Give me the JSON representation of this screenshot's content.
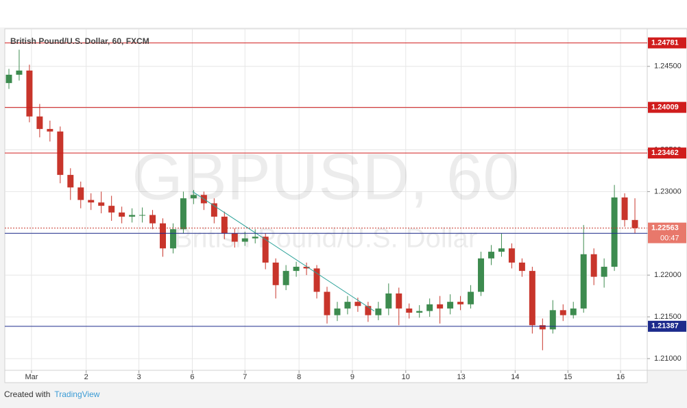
{
  "chart_data": {
    "type": "candlestick",
    "title": "British Pound/U.S. Dollar, 60, FXCM",
    "watermark": {
      "symbol": "GBPUSD, 60",
      "name": "British Pound/U.S. Dollar"
    },
    "up_color": "#3d8b4f",
    "down_color": "#c8352b",
    "open": [
      1.243,
      1.244,
      1.2445,
      1.239,
      1.2375,
      1.2372,
      1.232,
      1.2305,
      1.229,
      1.2287,
      1.2283,
      1.2275,
      1.227,
      1.2272,
      1.2272,
      1.2262,
      1.2232,
      1.2255,
      1.2292,
      1.2296,
      1.2286,
      1.227,
      1.225,
      1.224,
      1.2244,
      1.2246,
      1.2215,
      1.2188,
      1.2205,
      1.221,
      1.2208,
      1.218,
      1.2152,
      1.216,
      1.2168,
      1.2163,
      1.2152,
      1.216,
      1.2178,
      1.216,
      1.2155,
      1.2157,
      1.2165,
      1.216,
      1.2168,
      1.2165,
      1.218,
      1.222,
      1.2228,
      1.2232,
      1.2215,
      1.2205,
      1.214,
      1.2135,
      1.2158,
      1.2152,
      1.216,
      1.2225,
      1.2198,
      1.221,
      1.2293,
      1.2266
    ],
    "high": [
      1.2447,
      1.247,
      1.2452,
      1.2405,
      1.2385,
      1.2378,
      1.2328,
      1.2312,
      1.2298,
      1.23,
      1.2295,
      1.2282,
      1.228,
      1.2281,
      1.2278,
      1.2268,
      1.2262,
      1.23,
      1.2302,
      1.23,
      1.2292,
      1.2276,
      1.2256,
      1.2252,
      1.2255,
      1.225,
      1.222,
      1.2212,
      1.2216,
      1.2215,
      1.2212,
      1.2186,
      1.2168,
      1.2175,
      1.2173,
      1.2168,
      1.2168,
      1.219,
      1.2185,
      1.2166,
      1.2164,
      1.2172,
      1.2175,
      1.2177,
      1.2175,
      1.2188,
      1.2228,
      1.2236,
      1.225,
      1.2238,
      1.222,
      1.221,
      1.2148,
      1.217,
      1.2165,
      1.2168,
      1.226,
      1.2232,
      1.222,
      1.2308,
      1.2298,
      1.2292
    ],
    "low": [
      1.2423,
      1.2433,
      1.2383,
      1.2365,
      1.236,
      1.231,
      1.229,
      1.228,
      1.2278,
      1.2274,
      1.2265,
      1.2262,
      1.2263,
      1.2263,
      1.2255,
      1.2222,
      1.2226,
      1.225,
      1.2285,
      1.2278,
      1.2262,
      1.2243,
      1.2233,
      1.2235,
      1.2238,
      1.2207,
      1.2172,
      1.2182,
      1.2198,
      1.22,
      1.2172,
      1.2142,
      1.2145,
      1.2153,
      1.2156,
      1.2144,
      1.2146,
      1.2152,
      1.214,
      1.2148,
      1.2149,
      1.215,
      1.2142,
      1.2153,
      1.2158,
      1.216,
      1.2175,
      1.2212,
      1.2222,
      1.2208,
      1.2198,
      1.213,
      1.211,
      1.213,
      1.2145,
      1.2148,
      1.2155,
      1.2188,
      1.2185,
      1.2205,
      1.2258,
      1.225
    ],
    "close": [
      1.244,
      1.2445,
      1.239,
      1.2375,
      1.2372,
      1.232,
      1.2305,
      1.229,
      1.2287,
      1.2283,
      1.2275,
      1.227,
      1.2272,
      1.2272,
      1.2262,
      1.2232,
      1.2255,
      1.2292,
      1.2296,
      1.2286,
      1.227,
      1.225,
      1.224,
      1.2244,
      1.2246,
      1.2215,
      1.2188,
      1.2205,
      1.221,
      1.2208,
      1.218,
      1.2152,
      1.216,
      1.2168,
      1.2163,
      1.2152,
      1.216,
      1.2178,
      1.216,
      1.2155,
      1.2157,
      1.2165,
      1.216,
      1.2168,
      1.2165,
      1.218,
      1.222,
      1.2228,
      1.2232,
      1.2215,
      1.2205,
      1.214,
      1.2135,
      1.2158,
      1.2152,
      1.216,
      1.2225,
      1.2198,
      1.221,
      1.2293,
      1.2266,
      1.22563
    ],
    "countdown": "00:47",
    "levels": [
      {
        "value": 1.24781,
        "color": "#d01c1c"
      },
      {
        "value": 1.24009,
        "color": "#d01c1c"
      },
      {
        "value": 1.23462,
        "color": "#d01c1c"
      },
      {
        "value": 1.22501,
        "color": "#1c2a8c"
      },
      {
        "value": 1.21387,
        "color": "#1c2a8c"
      }
    ],
    "trendline": {
      "x": [
        17.9,
        35.6
      ],
      "y": [
        1.23,
        1.2157
      ],
      "color": "#2aa198"
    },
    "xlim": [
      -0.4,
      62.2
    ],
    "xticks": [
      {
        "value": 2.2,
        "label": "Mar"
      },
      {
        "value": 7.53,
        "label": "2"
      },
      {
        "value": 12.67,
        "label": "3"
      },
      {
        "value": 17.87,
        "label": "6"
      },
      {
        "value": 23,
        "label": "7"
      },
      {
        "value": 28.27,
        "label": "8"
      },
      {
        "value": 33.47,
        "label": "9"
      },
      {
        "value": 38.67,
        "label": "10"
      },
      {
        "value": 44.07,
        "label": "13"
      },
      {
        "value": 49.33,
        "label": "14"
      },
      {
        "value": 54.47,
        "label": "15"
      },
      {
        "value": 59.6,
        "label": "16"
      }
    ],
    "ylim": [
      1.2086,
      1.2495
    ],
    "yticks": [
      {
        "value": 1.21,
        "label": "1.21000"
      },
      {
        "value": 1.215,
        "label": "1.21500"
      },
      {
        "value": 1.22,
        "label": "1.22000"
      },
      {
        "value": 1.225,
        "label": "1.22500"
      },
      {
        "value": 1.23,
        "label": "1.23000"
      },
      {
        "value": 1.235,
        "label": "1.23500"
      },
      {
        "value": 1.24,
        "label": "1.24000"
      },
      {
        "value": 1.245,
        "label": "1.24500"
      }
    ],
    "grid": true
  },
  "footer": {
    "text": "Created with",
    "brand": "TradingView"
  }
}
